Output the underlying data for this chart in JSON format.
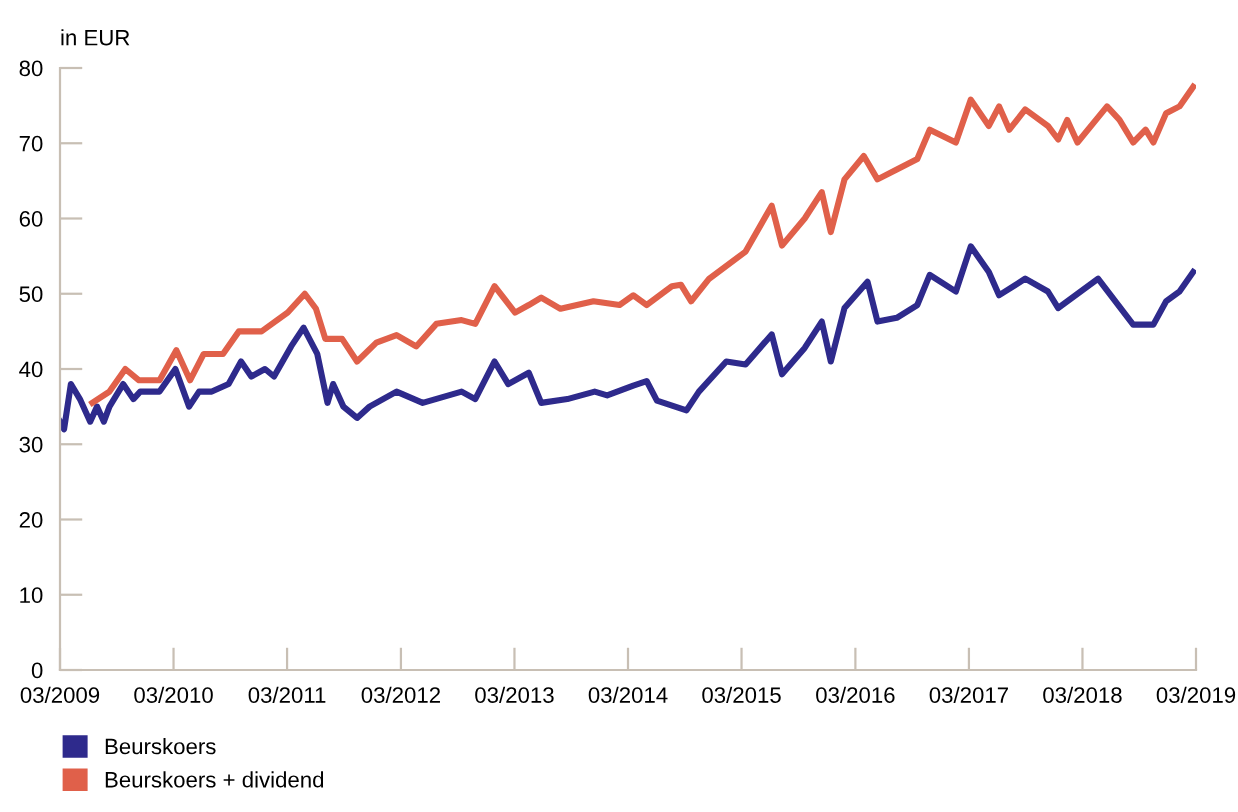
{
  "chart_data": {
    "type": "line",
    "ylabel": "in EUR",
    "xlim": [
      "2009-03-01",
      "2019-03-01"
    ],
    "ylim": [
      0,
      80
    ],
    "yticks": [
      0,
      10,
      20,
      30,
      40,
      50,
      60,
      70,
      80
    ],
    "xticks": [
      {
        "value": "2009-03-01",
        "label": "03/2009"
      },
      {
        "value": "2010-03-01",
        "label": "03/2010"
      },
      {
        "value": "2011-03-01",
        "label": "03/2011"
      },
      {
        "value": "2012-03-01",
        "label": "03/2012"
      },
      {
        "value": "2013-03-01",
        "label": "03/2013"
      },
      {
        "value": "2014-03-01",
        "label": "03/2014"
      },
      {
        "value": "2015-03-01",
        "label": "03/2015"
      },
      {
        "value": "2016-03-01",
        "label": "03/2016"
      },
      {
        "value": "2017-03-01",
        "label": "03/2017"
      },
      {
        "value": "2018-03-01",
        "label": "03/2018"
      },
      {
        "value": "2019-03-01",
        "label": "03/2019"
      }
    ],
    "grid": false,
    "legend": "bottom left",
    "marker": "none",
    "line_style": "solid",
    "series": [
      {
        "name": "Beurskoers",
        "color": "#2e2a8c",
        "x": [
          "2009-03-01",
          "2009-03-14",
          "2009-04-05",
          "2009-05-04",
          "2009-06-06",
          "2009-06-28",
          "2009-07-20",
          "2009-08-07",
          "2009-09-20",
          "2009-10-23",
          "2009-11-14",
          "2010-01-15",
          "2010-03-07",
          "2010-04-20",
          "2010-05-22",
          "2010-07-02",
          "2010-08-25",
          "2010-10-04",
          "2010-11-06",
          "2010-12-20",
          "2011-01-18",
          "2011-03-14",
          "2011-04-23",
          "2011-06-06",
          "2011-07-09",
          "2011-07-27",
          "2011-08-29",
          "2011-10-12",
          "2011-11-21",
          "2012-02-16",
          "2012-05-10",
          "2012-09-12",
          "2012-10-26",
          "2012-12-27",
          "2013-02-09",
          "2013-04-16",
          "2013-05-26",
          "2013-08-18",
          "2013-11-14",
          "2013-12-24",
          "2014-03-18",
          "2014-04-30",
          "2014-06-02",
          "2014-09-05",
          "2014-10-15",
          "2015-01-11",
          "2015-03-14",
          "2015-06-06",
          "2015-07-09",
          "2015-09-20",
          "2015-11-14",
          "2015-12-13",
          "2016-01-26",
          "2016-04-09",
          "2016-05-11",
          "2016-07-12",
          "2016-09-16",
          "2016-10-26",
          "2017-01-18",
          "2017-03-07",
          "2017-05-04",
          "2017-06-06",
          "2017-08-29",
          "2017-11-10",
          "2017-12-13",
          "2018-04-20",
          "2018-08-11",
          "2018-10-15",
          "2018-11-25",
          "2019-01-07",
          "2019-02-20"
        ],
        "values": [
          33,
          32,
          38,
          36,
          33,
          35,
          33,
          35,
          38,
          36,
          37,
          37,
          40,
          35,
          37,
          37,
          38,
          41,
          39,
          40,
          39,
          43,
          45.5,
          42,
          35.5,
          38,
          35,
          33.5,
          35,
          37,
          35.5,
          37,
          36,
          41,
          38,
          39.5,
          35.5,
          36,
          37,
          36.5,
          37.8,
          38.4,
          35.8,
          34.5,
          37,
          41,
          40.6,
          44.6,
          39.3,
          42.8,
          46.3,
          41,
          48.1,
          51.6,
          46.3,
          46.8,
          48.5,
          52.5,
          50.3,
          56.3,
          52.9,
          49.8,
          52,
          50.3,
          48.1,
          52,
          45.9,
          45.9,
          49,
          50.3,
          52.9
        ]
      },
      {
        "name": "Beurskoers + dividend",
        "color": "#e0604a",
        "x": [
          "2009-06-13",
          "2009-08-07",
          "2009-09-27",
          "2009-11-10",
          "2010-01-15",
          "2010-03-10",
          "2010-04-23",
          "2010-06-06",
          "2010-08-07",
          "2010-09-27",
          "2010-12-09",
          "2011-03-03",
          "2011-04-27",
          "2011-06-02",
          "2011-07-02",
          "2011-08-25",
          "2011-10-12",
          "2011-12-13",
          "2012-02-16",
          "2012-04-19",
          "2012-06-23",
          "2012-09-12",
          "2012-10-26",
          "2012-12-27",
          "2013-03-03",
          "2013-04-16",
          "2013-05-26",
          "2013-07-27",
          "2013-11-10",
          "2014-02-02",
          "2014-03-18",
          "2014-04-30",
          "2014-07-20",
          "2014-08-18",
          "2014-09-20",
          "2014-11-17",
          "2015-03-14",
          "2015-06-06",
          "2015-07-09",
          "2015-09-20",
          "2015-11-14",
          "2015-12-13",
          "2016-01-26",
          "2016-03-28",
          "2016-05-11",
          "2016-07-12",
          "2016-09-16",
          "2016-10-26",
          "2017-01-18",
          "2017-03-07",
          "2017-05-04",
          "2017-06-06",
          "2017-07-09",
          "2017-08-29",
          "2017-11-10",
          "2017-12-13",
          "2018-01-11",
          "2018-02-13",
          "2018-05-19",
          "2018-06-28",
          "2018-08-11",
          "2018-09-20",
          "2018-10-15",
          "2018-11-25",
          "2019-01-07",
          "2019-02-20"
        ],
        "values": [
          35.5,
          37,
          40,
          38.5,
          38.5,
          42.5,
          38.5,
          42,
          42,
          45,
          45,
          47.5,
          50,
          48,
          44,
          44,
          41,
          43.5,
          44.5,
          43,
          46,
          46.5,
          46,
          51,
          47.5,
          48.5,
          49.5,
          48,
          49,
          48.5,
          49.8,
          48.5,
          51,
          51.2,
          49,
          52,
          55.6,
          61.7,
          56.4,
          60,
          63.5,
          58.2,
          65.2,
          68.3,
          65.2,
          66.5,
          67.9,
          71.8,
          70.1,
          75.8,
          72.3,
          74.9,
          71.8,
          74.5,
          72.3,
          70.5,
          73.1,
          70.1,
          74.9,
          73.1,
          70.1,
          71.8,
          70.1,
          74,
          74.9,
          77.5
        ]
      }
    ]
  }
}
